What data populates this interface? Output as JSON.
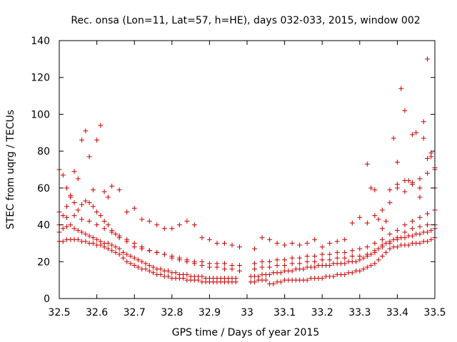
{
  "chart_data": {
    "type": "scatter",
    "title": "Rec. onsa (Lon=11, Lat=57, h=HE), days 032-033, 2015, window 002",
    "xlabel": "GPS time / Days of year 2015",
    "ylabel": "STEC from uqrg / TECUs",
    "xlim": [
      32.5,
      33.5
    ],
    "ylim": [
      0,
      140
    ],
    "xticks": [
      "32.5",
      "32.6",
      "32.7",
      "32.8",
      "32.9",
      "33",
      "33.1",
      "33.2",
      "33.3",
      "33.4",
      "33.5"
    ],
    "yticks": [
      "0",
      "20",
      "40",
      "60",
      "80",
      "100",
      "120",
      "140"
    ],
    "grid": false,
    "marker": "plus",
    "color": "#cc0000",
    "series": [
      {
        "x": [
          32.5,
          32.51,
          32.52,
          32.53,
          32.54,
          32.55,
          32.56,
          32.57,
          32.58,
          32.59,
          32.6,
          32.61,
          32.62,
          32.63,
          32.64,
          32.65,
          32.66,
          32.67,
          32.68,
          32.69,
          32.7,
          32.71,
          32.72,
          32.73,
          32.74,
          32.75,
          32.76,
          32.77,
          32.78,
          32.79,
          32.8,
          32.81,
          32.82,
          32.83,
          32.84,
          32.85,
          32.86,
          32.87,
          32.88,
          32.89,
          32.9,
          32.91,
          32.92,
          32.93,
          32.94,
          32.95,
          32.96,
          32.97,
          33.01,
          33.02,
          33.03,
          33.04,
          33.05,
          33.06,
          33.07,
          33.08,
          33.09,
          33.1,
          33.11,
          33.12,
          33.13,
          33.14,
          33.15,
          33.16,
          33.17,
          33.18,
          33.19,
          33.2,
          33.21,
          33.22,
          33.23,
          33.24,
          33.25,
          33.26,
          33.27,
          33.28,
          33.29,
          33.3,
          33.31,
          33.32,
          33.33,
          33.34,
          33.35,
          33.36,
          33.37,
          33.38,
          33.39,
          33.4,
          33.41,
          33.42,
          33.43,
          33.44,
          33.45,
          33.46,
          33.47,
          33.48,
          33.49,
          33.5
        ],
        "y": [
          31,
          31,
          32,
          32,
          32,
          32,
          31,
          31,
          30,
          30,
          29,
          29,
          28,
          27,
          26,
          25,
          24,
          22,
          20,
          19,
          18,
          17,
          16,
          16,
          15,
          14,
          13,
          13,
          12,
          12,
          11,
          11,
          11,
          11,
          10,
          10,
          10,
          10,
          9,
          9,
          9,
          9,
          9,
          9,
          9,
          9,
          9,
          9,
          9,
          9,
          10,
          10,
          10,
          8,
          8,
          9,
          9,
          10,
          10,
          10,
          10,
          10,
          10,
          10,
          11,
          11,
          11,
          11,
          12,
          12,
          12,
          13,
          13,
          13,
          14,
          14,
          15,
          15,
          16,
          17,
          18,
          19,
          21,
          23,
          25,
          27,
          28,
          28,
          29,
          29,
          29,
          30,
          30,
          30,
          31,
          31,
          32,
          33
        ]
      },
      {
        "x": [
          32.5,
          32.51,
          32.52,
          32.53,
          32.54,
          32.55,
          32.56,
          32.57,
          32.58,
          32.59,
          32.6,
          32.61,
          32.62,
          32.63,
          32.64,
          32.65,
          32.66,
          32.67,
          32.68,
          32.69,
          32.7,
          32.71,
          32.72,
          32.73,
          32.74,
          32.75,
          32.76,
          32.77,
          32.78,
          32.79,
          32.8,
          32.81,
          32.82,
          32.83,
          32.84,
          32.85,
          32.86,
          32.87,
          32.88,
          32.89,
          32.9,
          32.91,
          32.92,
          32.93,
          32.94,
          32.95,
          32.96,
          32.97,
          33.01,
          33.02,
          33.03,
          33.04,
          33.05,
          33.06,
          33.07,
          33.08,
          33.09,
          33.1,
          33.11,
          33.12,
          33.13,
          33.14,
          33.15,
          33.16,
          33.17,
          33.18,
          33.19,
          33.2,
          33.21,
          33.22,
          33.23,
          33.24,
          33.25,
          33.26,
          33.27,
          33.28,
          33.29,
          33.3,
          33.31,
          33.32,
          33.33,
          33.34,
          33.35,
          33.36,
          33.37,
          33.38,
          33.39,
          33.4,
          33.41,
          33.42,
          33.43,
          33.44,
          33.45,
          33.46,
          33.47,
          33.48,
          33.49,
          33.5
        ],
        "y": [
          36,
          38,
          39,
          40,
          38,
          37,
          36,
          35,
          34,
          33,
          32,
          31,
          30,
          30,
          29,
          28,
          27,
          25,
          24,
          23,
          22,
          21,
          20,
          19,
          18,
          17,
          16,
          16,
          15,
          15,
          14,
          14,
          13,
          13,
          13,
          12,
          12,
          12,
          12,
          11,
          11,
          11,
          11,
          11,
          11,
          11,
          11,
          11,
          12,
          12,
          12,
          13,
          13,
          13,
          14,
          14,
          14,
          15,
          15,
          15,
          16,
          16,
          16,
          17,
          17,
          17,
          18,
          18,
          18,
          18,
          19,
          19,
          19,
          19,
          20,
          20,
          20,
          21,
          22,
          23,
          24,
          25,
          27,
          29,
          30,
          31,
          32,
          32,
          33,
          33,
          34,
          34,
          35,
          35,
          36,
          36,
          37,
          38
        ]
      },
      {
        "x": [
          32.5,
          32.52,
          32.54,
          32.56,
          32.58,
          32.6,
          32.62,
          32.64,
          32.66,
          32.68,
          32.7,
          32.72,
          32.74,
          32.76,
          32.78,
          32.8,
          32.82,
          32.84,
          32.86,
          32.88,
          32.9,
          32.92,
          32.94,
          32.96,
          32.98,
          33.02,
          33.04,
          33.06,
          33.08,
          33.1,
          33.12,
          33.14,
          33.16,
          33.18,
          33.2,
          33.22,
          33.24,
          33.26,
          33.28,
          33.3,
          33.32,
          33.34,
          33.36,
          33.38,
          33.4,
          33.42,
          33.44,
          33.46,
          33.48,
          33.5
        ],
        "y": [
          40,
          44,
          45,
          43,
          42,
          40,
          38,
          36,
          34,
          32,
          30,
          28,
          26,
          25,
          24,
          22,
          21,
          20,
          19,
          18,
          17,
          17,
          16,
          16,
          15,
          16,
          17,
          17,
          18,
          18,
          19,
          19,
          20,
          20,
          21,
          21,
          22,
          22,
          23,
          23,
          24,
          26,
          28,
          30,
          33,
          36,
          38,
          39,
          40,
          40
        ]
      },
      {
        "x": [
          32.5,
          32.51,
          32.52,
          32.53,
          32.54,
          32.55,
          32.56,
          32.57,
          32.58,
          32.59,
          32.6,
          32.61,
          32.62,
          32.63,
          32.64,
          32.65,
          32.66,
          32.68,
          32.7,
          32.72,
          32.74,
          32.76,
          32.78,
          32.8,
          32.82,
          32.84,
          32.86,
          32.88,
          32.9,
          32.92,
          32.94,
          32.96,
          32.98,
          33.02,
          33.04,
          33.06,
          33.08,
          33.1,
          33.12,
          33.14,
          33.16,
          33.18,
          33.2,
          33.22,
          33.24,
          33.26,
          33.28,
          33.3,
          33.32,
          33.34,
          33.36,
          33.38,
          33.4,
          33.42,
          33.44,
          33.46,
          33.48,
          33.5
        ],
        "y": [
          47,
          45,
          50,
          55,
          52,
          48,
          51,
          53,
          52,
          50,
          47,
          45,
          42,
          40,
          37,
          35,
          33,
          31,
          28,
          27,
          26,
          25,
          24,
          23,
          22,
          21,
          20,
          20,
          19,
          19,
          19,
          18,
          18,
          19,
          20,
          20,
          21,
          21,
          22,
          22,
          23,
          23,
          24,
          24,
          25,
          25,
          26,
          27,
          28,
          30,
          32,
          35,
          37,
          40,
          42,
          44,
          46,
          48
        ]
      },
      {
        "x": [
          32.5,
          32.51,
          32.52,
          32.53,
          32.54,
          32.55,
          32.56,
          32.57,
          32.58,
          32.59,
          32.6,
          32.61,
          32.62,
          32.63,
          32.64,
          32.66,
          32.68,
          32.7,
          32.72,
          32.74,
          32.76,
          32.78,
          32.8,
          32.82,
          32.84,
          32.86,
          32.88,
          32.9,
          32.92,
          32.94,
          32.96,
          32.98,
          33.02,
          33.04,
          33.06,
          33.08,
          33.1,
          33.12,
          33.14,
          33.16,
          33.18,
          33.2,
          33.22,
          33.24,
          33.26,
          33.28,
          33.3,
          33.32,
          33.34,
          33.36,
          33.38,
          33.4,
          33.42,
          33.44,
          33.46,
          33.48,
          33.5
        ],
        "y": [
          70,
          67,
          60,
          56,
          69,
          65,
          86,
          91,
          77,
          59,
          86,
          94,
          58,
          55,
          61,
          59,
          47,
          49,
          43,
          42,
          40,
          38,
          38,
          40,
          42,
          40,
          33,
          32,
          30,
          30,
          29,
          28,
          27,
          33,
          32,
          30,
          29,
          30,
          29,
          30,
          32,
          28,
          30,
          31,
          32,
          41,
          44,
          41,
          45,
          48,
          52,
          60,
          58,
          62,
          65,
          68,
          70
        ]
      },
      {
        "x": [
          33.32,
          33.33,
          33.34,
          33.35,
          33.36,
          33.37,
          33.38,
          33.39,
          33.4,
          33.41,
          33.42,
          33.43,
          33.44,
          33.45,
          33.46,
          33.47,
          33.48,
          33.49,
          33.5
        ],
        "y": [
          73,
          60,
          59,
          43,
          38,
          42,
          59,
          87,
          74,
          114,
          102,
          64,
          89,
          90,
          55,
          96,
          130,
          77,
          60
        ]
      },
      {
        "x": [
          33.4,
          33.42,
          33.44,
          33.46,
          33.47,
          33.48,
          33.49,
          33.5
        ],
        "y": [
          62,
          64,
          63,
          60,
          87,
          76,
          79,
          71
        ]
      }
    ]
  }
}
